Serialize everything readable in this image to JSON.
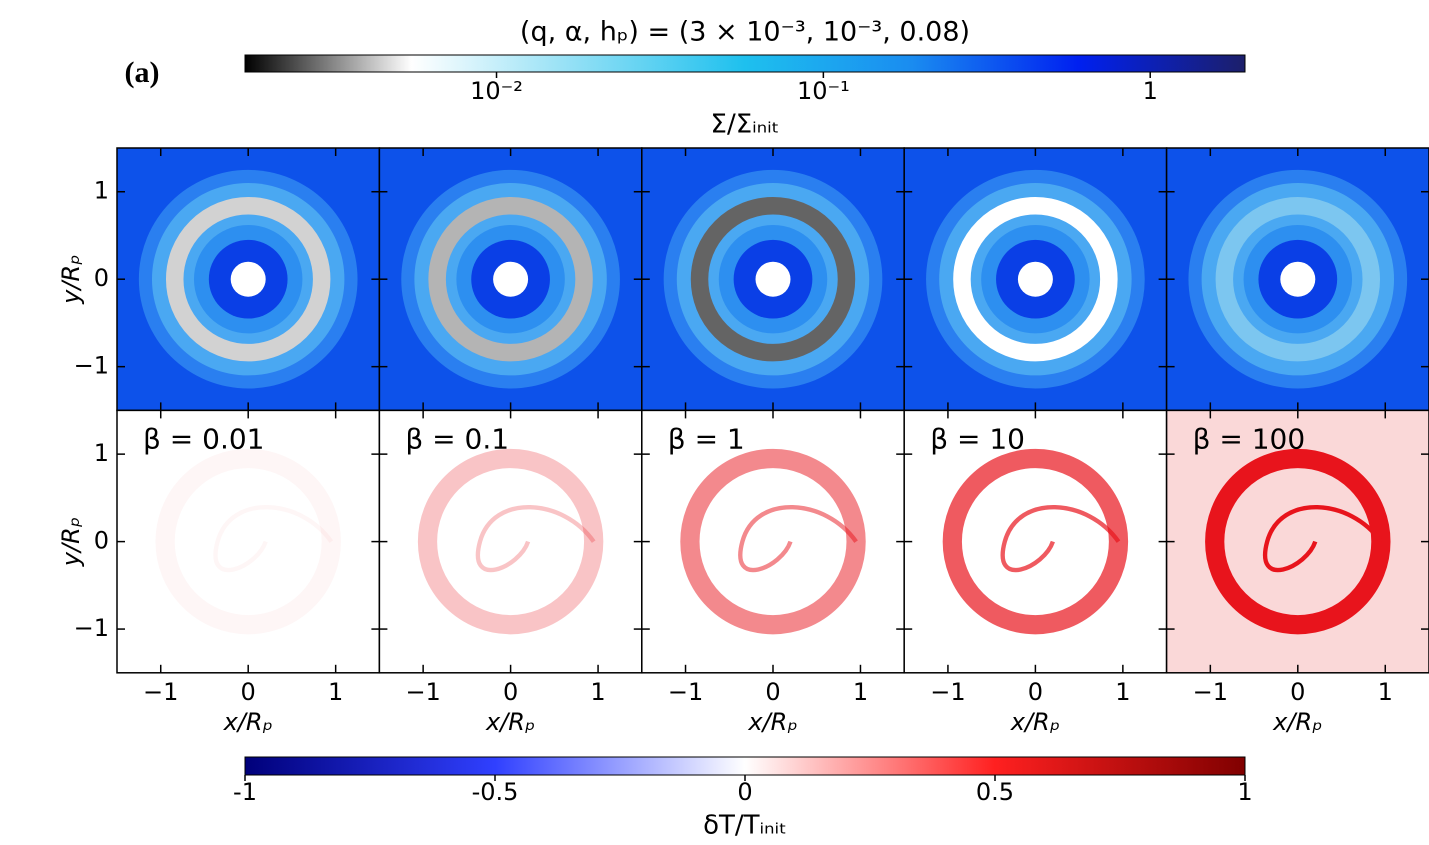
{
  "panel_label": "(a)",
  "title": "(q, α, hₚ) = (3 × 10⁻³, 10⁻³, 0.08)",
  "top_colorbar": {
    "label": "Σ/Σᵢₙᵢₜ",
    "scale": "log",
    "lim": [
      0.0017,
      1.95
    ],
    "ticks": [
      {
        "value": 0.01,
        "label": "10⁻²"
      },
      {
        "value": 0.1,
        "label": "10⁻¹"
      },
      1
    ],
    "colors": [
      "#000000",
      "#ffffff",
      "#8fdff5",
      "#1ec0ee",
      "#1a8cf0",
      "#0020f0",
      "#1c1f6a"
    ]
  },
  "bottom_colorbar": {
    "label": "δT/Tᵢₙᵢₜ",
    "scale": "linear",
    "lim": [
      -1,
      1
    ],
    "ticks": [
      -1,
      -0.5,
      0,
      0.5,
      1
    ],
    "colors": [
      "#00007a",
      "#3040ff",
      "#ffffff",
      "#ff2020",
      "#800000"
    ]
  },
  "panels": {
    "xlabel": "x/Rₚ",
    "ylabel": "y/Rₚ",
    "xlim": [
      -1.5,
      1.5
    ],
    "ylim": [
      -1.5,
      1.5
    ],
    "xticks": [
      {
        "value": -1,
        "label": "−1"
      },
      0,
      1
    ],
    "yticks": [
      {
        "value": -1,
        "label": "−1"
      },
      0,
      1
    ],
    "betas": [
      "β = 0.01",
      "β = 0.1",
      "β = 1",
      "β = 10",
      "β = 100"
    ]
  }
}
